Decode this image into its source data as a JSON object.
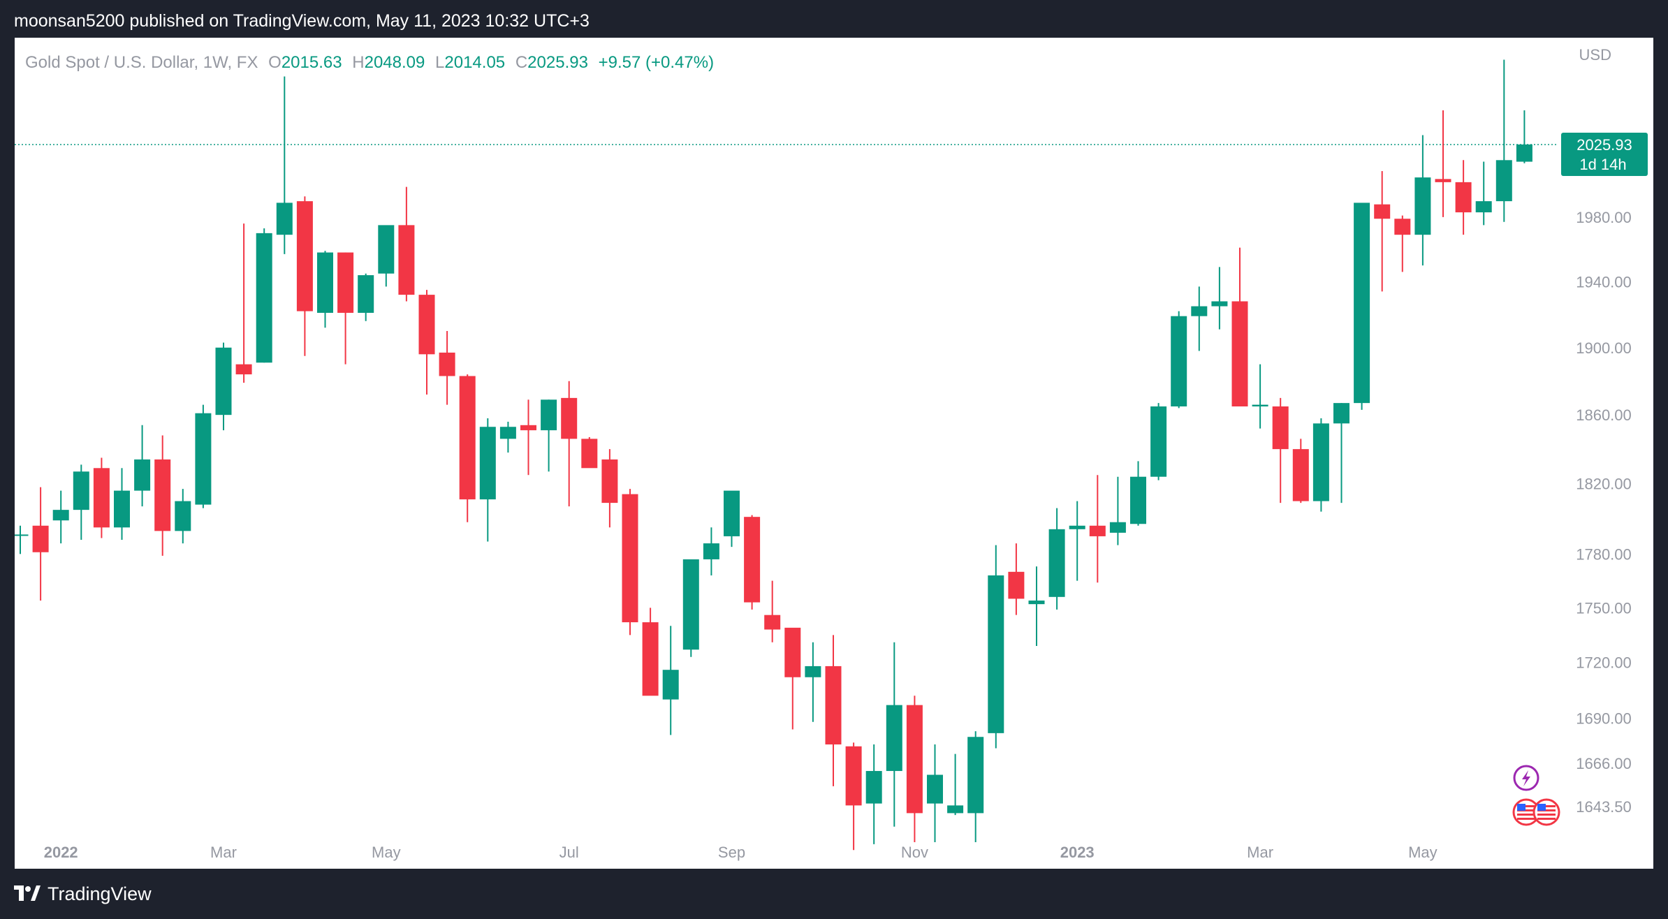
{
  "header": {
    "published": "moonsan5200 published on TradingView.com, May 11, 2023 10:32 UTC+3"
  },
  "legend": {
    "symbol": "Gold Spot / U.S. Dollar, 1W, FX",
    "o_label": "O",
    "o_value": "2015.63",
    "h_label": "H",
    "h_value": "2048.09",
    "l_label": "L",
    "l_value": "2014.05",
    "c_label": "C",
    "c_value": "2025.93",
    "change": "+9.57 (+0.47%)"
  },
  "axis_unit": "USD",
  "price_badge": {
    "price": "2025.93",
    "countdown": "1d 14h"
  },
  "footer": {
    "brand": "TradingView"
  },
  "colors": {
    "up": "#089981",
    "down": "#f23645",
    "text": "#9598a1",
    "panel": "#ffffff",
    "frame": "#1e222d"
  },
  "icons": {
    "event_icon": "lightning-icon",
    "flag_icon": "us-flag-icon"
  },
  "chart_data": {
    "type": "candlestick",
    "interval": "1W",
    "y_scale": "log",
    "y_range": [
      1615,
      2090
    ],
    "y_ticks": [
      "1980.00",
      "1940.00",
      "1900.00",
      "1860.00",
      "1820.00",
      "1780.00",
      "1750.00",
      "1720.00",
      "1690.00",
      "1666.00",
      "1643.50"
    ],
    "x_labels": [
      "2022",
      "Mar",
      "May",
      "Jul",
      "Sep",
      "Nov",
      "2023",
      "Mar",
      "May"
    ],
    "x_label_index": [
      2,
      10,
      18,
      27,
      35,
      44,
      52,
      61,
      69
    ],
    "last_close": 2025.93,
    "candles": [
      [
        1791,
        1796,
        1780,
        1791
      ],
      [
        1796,
        1818,
        1754,
        1781
      ],
      [
        1799,
        1816,
        1786,
        1805
      ],
      [
        1805,
        1831,
        1788,
        1827
      ],
      [
        1829,
        1835,
        1789,
        1795
      ],
      [
        1795,
        1829,
        1788,
        1816
      ],
      [
        1816,
        1854,
        1807,
        1834
      ],
      [
        1834,
        1848,
        1779,
        1793
      ],
      [
        1793,
        1817,
        1786,
        1810
      ],
      [
        1808,
        1866,
        1806,
        1861
      ],
      [
        1860,
        1903,
        1851,
        1900
      ],
      [
        1890,
        1976,
        1879,
        1884
      ],
      [
        1891,
        1973,
        1891,
        1970
      ],
      [
        1969,
        2070,
        1957,
        1989
      ],
      [
        1990,
        1993,
        1895,
        1922
      ],
      [
        1921,
        1959,
        1912,
        1958
      ],
      [
        1958,
        1958,
        1890,
        1921
      ],
      [
        1921,
        1945,
        1916,
        1944
      ],
      [
        1945,
        1974,
        1937,
        1975
      ],
      [
        1975,
        1999,
        1928,
        1932
      ],
      [
        1932,
        1935,
        1872,
        1896
      ],
      [
        1897,
        1910,
        1866,
        1883
      ],
      [
        1883,
        1884,
        1798,
        1811
      ],
      [
        1811,
        1858,
        1787,
        1853
      ],
      [
        1846,
        1856,
        1838,
        1853
      ],
      [
        1854,
        1869,
        1825,
        1851
      ],
      [
        1851,
        1869,
        1827,
        1869
      ],
      [
        1870,
        1880,
        1807,
        1846
      ],
      [
        1846,
        1847,
        1830,
        1829
      ],
      [
        1834,
        1840,
        1795,
        1809
      ],
      [
        1814,
        1817,
        1735,
        1742
      ],
      [
        1742,
        1750,
        1706,
        1702
      ],
      [
        1700,
        1740,
        1681,
        1716
      ],
      [
        1727,
        1775,
        1723,
        1777
      ],
      [
        1777,
        1795,
        1768,
        1786
      ],
      [
        1790,
        1812,
        1784,
        1816
      ],
      [
        1801,
        1802,
        1749,
        1753
      ],
      [
        1746,
        1765,
        1731,
        1738
      ],
      [
        1739,
        1738,
        1684,
        1712
      ],
      [
        1712,
        1731,
        1688,
        1718
      ],
      [
        1718,
        1735,
        1654,
        1676
      ],
      [
        1675,
        1677,
        1621,
        1644
      ],
      [
        1645,
        1676,
        1624,
        1662
      ],
      [
        1662,
        1731,
        1633,
        1697
      ],
      [
        1697,
        1702,
        1625,
        1640
      ],
      [
        1645,
        1676,
        1625,
        1660
      ],
      [
        1640,
        1671,
        1639,
        1644
      ],
      [
        1640,
        1683,
        1625,
        1680
      ],
      [
        1682,
        1785,
        1674,
        1768
      ],
      [
        1770,
        1786,
        1746,
        1755
      ],
      [
        1752,
        1773,
        1729,
        1754
      ],
      [
        1756,
        1806,
        1749,
        1794
      ],
      [
        1794,
        1810,
        1765,
        1796
      ],
      [
        1796,
        1825,
        1764,
        1790
      ],
      [
        1792,
        1824,
        1785,
        1798
      ],
      [
        1797,
        1833,
        1796,
        1824
      ],
      [
        1824,
        1867,
        1822,
        1865
      ],
      [
        1865,
        1922,
        1864,
        1919
      ],
      [
        1919,
        1937,
        1898,
        1925
      ],
      [
        1925,
        1949,
        1911,
        1928
      ],
      [
        1928,
        1961,
        1865,
        1865
      ],
      [
        1865,
        1890,
        1852,
        1866
      ],
      [
        1865,
        1870,
        1809,
        1840
      ],
      [
        1840,
        1846,
        1809,
        1810
      ],
      [
        1810,
        1858,
        1804,
        1855
      ],
      [
        1855,
        1867,
        1809,
        1867
      ],
      [
        1867,
        1988,
        1863,
        1989
      ],
      [
        1988,
        2009,
        1934,
        1979
      ],
      [
        1979,
        1981,
        1946,
        1969
      ],
      [
        1969,
        2032,
        1950,
        2005
      ],
      [
        2004,
        2048,
        1980,
        2002
      ],
      [
        2002,
        2016,
        1969,
        1983
      ],
      [
        1983,
        2015,
        1975,
        1990
      ],
      [
        1990,
        2081,
        1977,
        2016
      ],
      [
        2015,
        2048,
        2014,
        2026
      ]
    ]
  }
}
